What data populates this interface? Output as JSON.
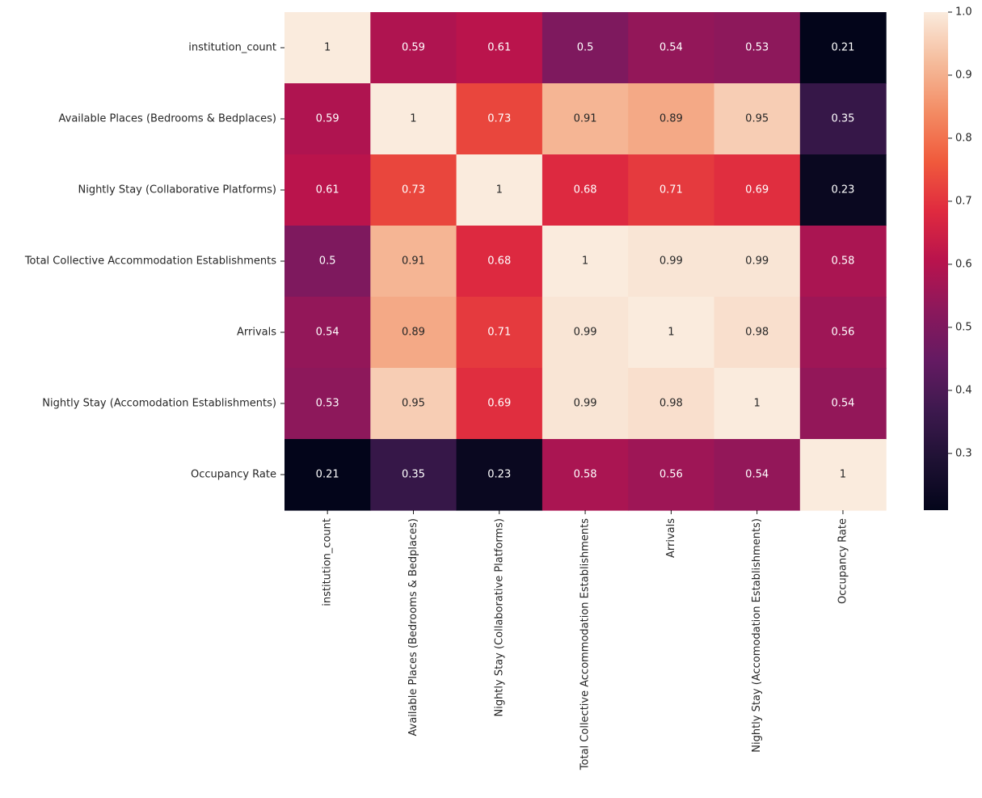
{
  "chart_data": {
    "type": "heatmap",
    "title": "",
    "xlabel": "",
    "ylabel": "",
    "rows": [
      "institution_count",
      "Available Places (Bedrooms & Bedplaces)",
      "Nightly Stay (Collaborative Platforms)",
      "Total Collective Accommodation Establishments",
      "Arrivals",
      "Nightly Stay (Accomodation Establishments)",
      "Occupancy Rate"
    ],
    "columns": [
      "institution_count",
      "Available Places (Bedrooms & Bedplaces)",
      "Nightly Stay (Collaborative Platforms)",
      "Total Collective Accommodation Establishments",
      "Arrivals",
      "Nightly Stay (Accomodation Establishments)",
      "Occupancy Rate"
    ],
    "values": [
      [
        1,
        0.59,
        0.61,
        0.5,
        0.54,
        0.53,
        0.21
      ],
      [
        0.59,
        1,
        0.73,
        0.91,
        0.89,
        0.95,
        0.35
      ],
      [
        0.61,
        0.73,
        1,
        0.68,
        0.71,
        0.69,
        0.23
      ],
      [
        0.5,
        0.91,
        0.68,
        1,
        0.99,
        0.99,
        0.58
      ],
      [
        0.54,
        0.89,
        0.71,
        0.99,
        1,
        0.98,
        0.56
      ],
      [
        0.53,
        0.95,
        0.69,
        0.99,
        0.98,
        1,
        0.54
      ],
      [
        0.21,
        0.35,
        0.23,
        0.58,
        0.56,
        0.54,
        1
      ]
    ],
    "annotations": [
      [
        "1",
        "0.59",
        "0.61",
        "0.5",
        "0.54",
        "0.53",
        "0.21"
      ],
      [
        "0.59",
        "1",
        "0.73",
        "0.91",
        "0.89",
        "0.95",
        "0.35"
      ],
      [
        "0.61",
        "0.73",
        "1",
        "0.68",
        "0.71",
        "0.69",
        "0.23"
      ],
      [
        "0.5",
        "0.91",
        "0.68",
        "1",
        "0.99",
        "0.99",
        "0.58"
      ],
      [
        "0.54",
        "0.89",
        "0.71",
        "0.99",
        "1",
        "0.98",
        "0.56"
      ],
      [
        "0.53",
        "0.95",
        "0.69",
        "0.99",
        "0.98",
        "1",
        "0.54"
      ],
      [
        "0.21",
        "0.35",
        "0.23",
        "0.58",
        "0.56",
        "0.54",
        "1"
      ]
    ],
    "colormap": "rocket",
    "colorbar": {
      "vmin": 0.21,
      "vmax": 1.0,
      "ticks": [
        0.3,
        0.4,
        0.5,
        0.6,
        0.7,
        0.8,
        0.9,
        1.0
      ],
      "tick_labels": [
        "0.3",
        "0.4",
        "0.5",
        "0.6",
        "0.7",
        "0.8",
        "0.9",
        "1.0"
      ],
      "placement": "right"
    },
    "annotation_colors": {
      "light": "#ffffff",
      "dark": "#262626"
    }
  }
}
